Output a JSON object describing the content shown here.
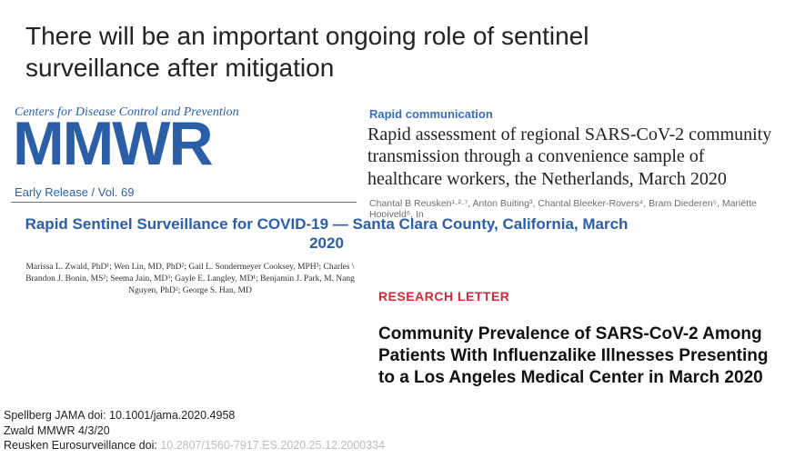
{
  "colors": {
    "cdc_blue": "#2c5ea8",
    "research_red": "#d42a33",
    "text": "#222222",
    "text_strong": "#111111",
    "author_grey": "#6a6e73",
    "doi_grey": "#bdbdbd",
    "rule_grey": "#707070",
    "background": "#ffffff"
  },
  "title": "There will be an important ongoing role of sentinel surveillance after mitigation",
  "mmwr": {
    "tagline": "Centers for Disease Control and Prevention",
    "logo_text": "MMWR",
    "release": "Early Release / Vol. 69",
    "article_title": "Rapid Sentinel Surveillance for COVID-19 — Santa Clara County, California, March 2020",
    "authors": "Marissa L. Zwald, PhD¹; Wen Lin, MD, PhD²; Gail L. Sondermeyer Cooksey, MPH³; Charles \\ Brandon J. Bonin, MS²; Seema Jain, MD³; Gayle E. Langley, MD¹; Benjamin J. Park, M. Nang Nguyen, PhD²; George S. Han, MD"
  },
  "rapid": {
    "label": "Rapid communication",
    "title": "Rapid assessment of regional SARS-CoV-2 community transmission through a convenience sample of healthcare workers, the Netherlands, March 2020",
    "authors": "Chantal B Reusken¹·²·⁷, Anton Buiting³, Chantal Bleeker-Rovers⁴, Bram Diederen⁵, Mariëtte Hooiveld⁶, In"
  },
  "research": {
    "label": "RESEARCH LETTER",
    "title": "Community Prevalence of SARS-CoV-2 Among Patients With Influenzalike Illnesses Presenting to a Los Angeles Medical Center in March 2020"
  },
  "footer": {
    "line1": "Spellberg JAMA doi: 10.1001/jama.2020.4958",
    "line2": "Zwald MMWR 4/3/20",
    "line3_prefix": "Reusken Eurosurveillance doi: ",
    "line3_doi": "10.2807/1560-7917.ES.2020.25.12.2000334"
  }
}
